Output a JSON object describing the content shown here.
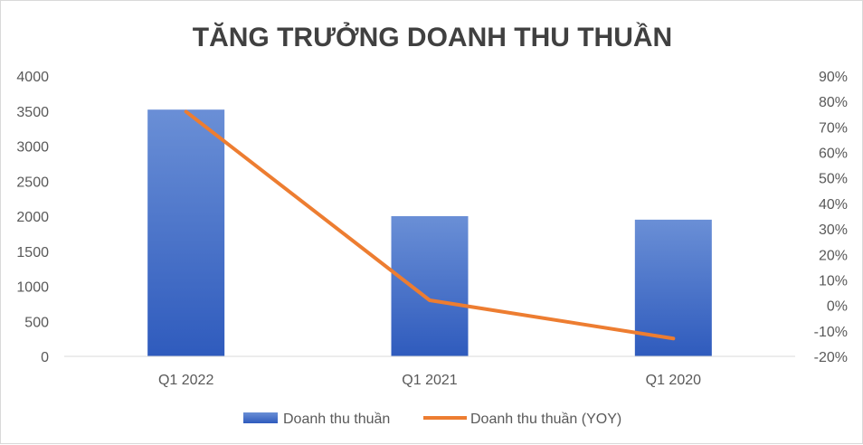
{
  "chart_data": {
    "type": "bar",
    "title": "TĂNG TRƯỞNG DOANH THU THUẦN",
    "categories": [
      "Q1 2022",
      "Q1 2021",
      "Q1 2020"
    ],
    "series": [
      {
        "name": "Doanh thu thuần",
        "type": "bar",
        "axis": "left",
        "values": [
          3520,
          2000,
          1950
        ]
      },
      {
        "name": "Doanh thu thuần (YOY)",
        "type": "line",
        "axis": "right",
        "values": [
          0.76,
          0.02,
          -0.13
        ]
      }
    ],
    "yleft": {
      "lim": [
        0,
        4000
      ],
      "ticks": [
        0,
        500,
        1000,
        1500,
        2000,
        2500,
        3000,
        3500,
        4000
      ],
      "tick_labels": [
        "0",
        "500",
        "1000",
        "1500",
        "2000",
        "2500",
        "3000",
        "3500",
        "4000"
      ]
    },
    "yright": {
      "lim": [
        -0.2,
        0.9
      ],
      "ticks": [
        -0.2,
        -0.1,
        0,
        0.1,
        0.2,
        0.3,
        0.4,
        0.5,
        0.6,
        0.7,
        0.8,
        0.9
      ],
      "tick_labels": [
        "-20%",
        "-10%",
        "0%",
        "10%",
        "20%",
        "30%",
        "40%",
        "50%",
        "60%",
        "70%",
        "80%",
        "90%"
      ]
    },
    "xlabel": "",
    "ylabel": "",
    "grid": false,
    "legend_position": "bottom",
    "colors": {
      "bar_top": "#6a8fd6",
      "bar_bottom": "#2f5bbd",
      "line": "#ed7d31",
      "axis": "#d9d9d9",
      "text": "#595959",
      "title": "#404040"
    }
  }
}
